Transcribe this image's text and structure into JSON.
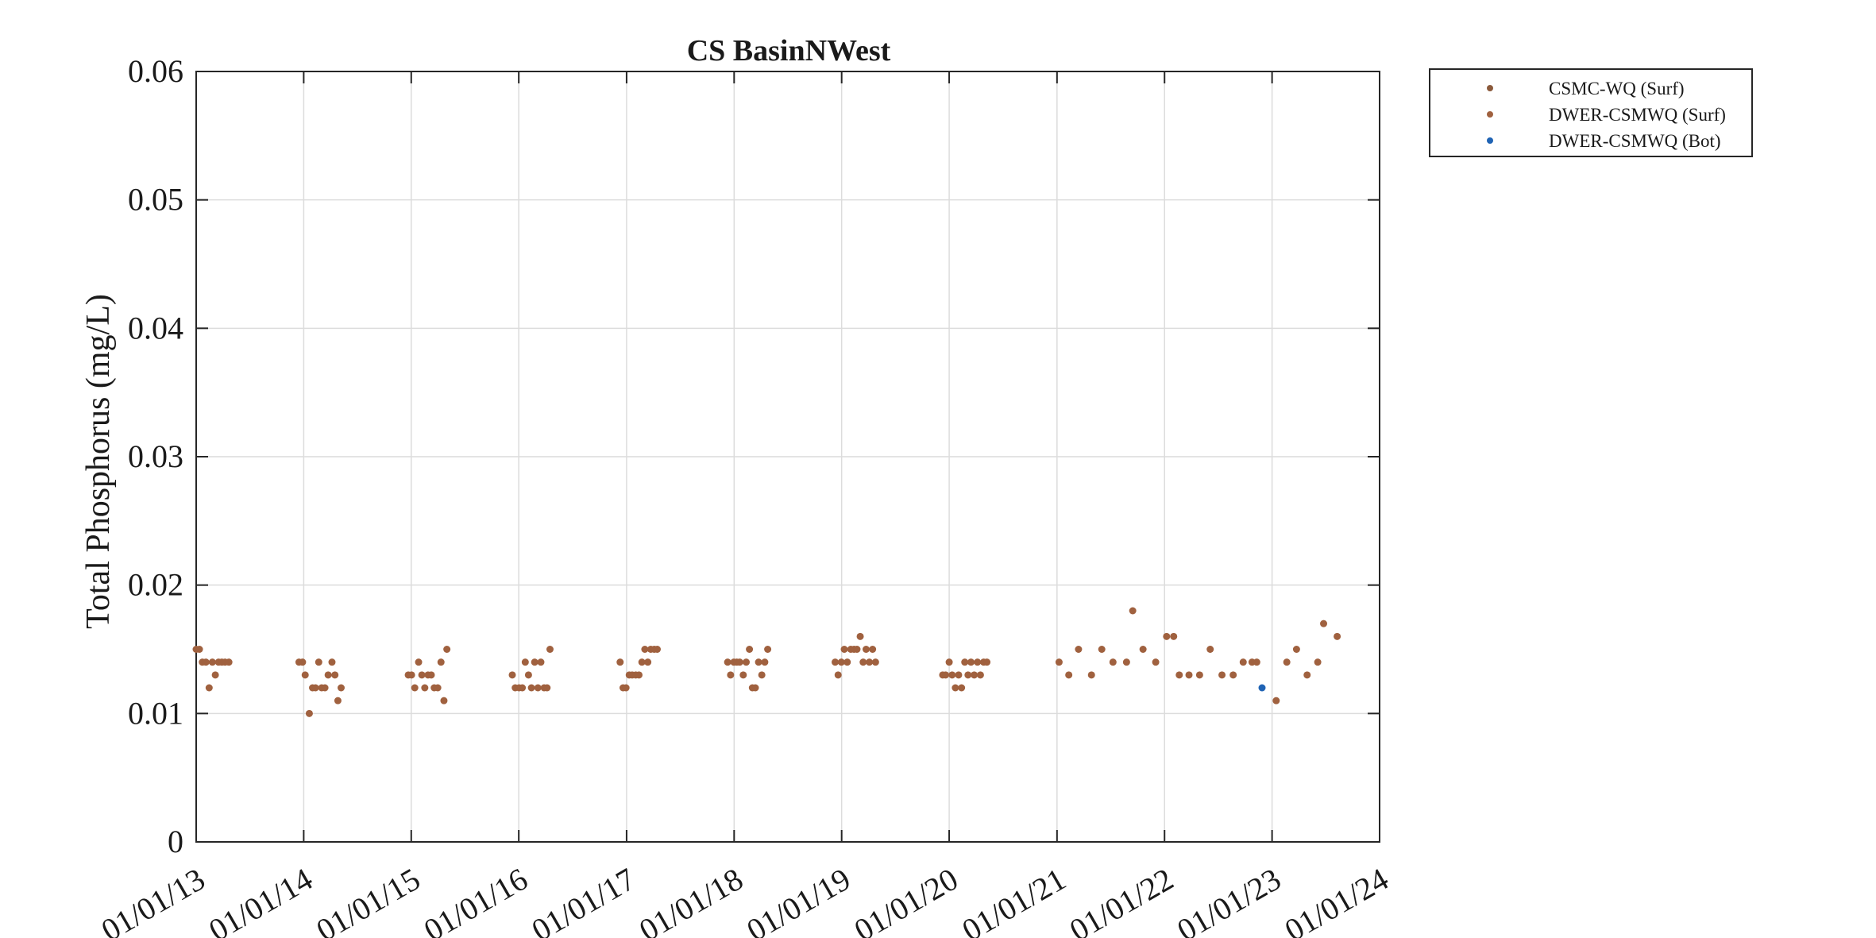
{
  "chart_data": {
    "type": "scatter",
    "title": "CS BasinNWest",
    "xlabel": "",
    "ylabel": "Total Phosphorus (mg/L)",
    "xlim": [
      "2013-01-01",
      "2024-01-01"
    ],
    "ylim": [
      0,
      0.06
    ],
    "grid": true,
    "legend_position": "outside-top-right",
    "x_ticks": [
      "01/01/13",
      "01/01/14",
      "01/01/15",
      "01/01/16",
      "01/01/17",
      "01/01/18",
      "01/01/19",
      "01/01/20",
      "01/01/21",
      "01/01/22",
      "01/01/23",
      "01/01/24"
    ],
    "y_ticks": [
      "0",
      "0.01",
      "0.02",
      "0.03",
      "0.04",
      "0.05",
      "0.06"
    ],
    "y_tick_values": [
      0,
      0.01,
      0.02,
      0.03,
      0.04,
      0.05,
      0.06
    ],
    "series": [
      {
        "name": "CSMC-WQ (Surf)",
        "color": "#8B5A3C",
        "points": []
      },
      {
        "name": "DWER-CSMWQ (Surf)",
        "color": "#A0613F",
        "points": [
          [
            "2013-01-01",
            0.015
          ],
          [
            "2013-01-12",
            0.015
          ],
          [
            "2013-01-22",
            0.014
          ],
          [
            "2013-02-03",
            0.014
          ],
          [
            "2013-02-14",
            0.012
          ],
          [
            "2013-02-25",
            0.014
          ],
          [
            "2013-03-07",
            0.013
          ],
          [
            "2013-03-18",
            0.014
          ],
          [
            "2013-03-29",
            0.014
          ],
          [
            "2013-04-09",
            0.014
          ],
          [
            "2013-04-22",
            0.014
          ],
          [
            "2013-12-16",
            0.014
          ],
          [
            "2013-12-28",
            0.014
          ],
          [
            "2014-01-06",
            0.013
          ],
          [
            "2014-01-20",
            0.01
          ],
          [
            "2014-01-31",
            0.012
          ],
          [
            "2014-02-10",
            0.012
          ],
          [
            "2014-02-21",
            0.014
          ],
          [
            "2014-03-03",
            0.012
          ],
          [
            "2014-03-14",
            0.012
          ],
          [
            "2014-03-25",
            0.013
          ],
          [
            "2014-04-07",
            0.014
          ],
          [
            "2014-04-17",
            0.013
          ],
          [
            "2014-04-27",
            0.011
          ],
          [
            "2014-05-08",
            0.012
          ],
          [
            "2014-12-22",
            0.013
          ],
          [
            "2015-01-02",
            0.013
          ],
          [
            "2015-01-13",
            0.012
          ],
          [
            "2015-01-26",
            0.014
          ],
          [
            "2015-02-06",
            0.013
          ],
          [
            "2015-02-16",
            0.012
          ],
          [
            "2015-02-27",
            0.013
          ],
          [
            "2015-03-10",
            0.013
          ],
          [
            "2015-03-20",
            0.012
          ],
          [
            "2015-04-01",
            0.012
          ],
          [
            "2015-04-12",
            0.014
          ],
          [
            "2015-04-22",
            0.011
          ],
          [
            "2015-05-02",
            0.015
          ],
          [
            "2015-12-10",
            0.013
          ],
          [
            "2015-12-20",
            0.012
          ],
          [
            "2016-01-02",
            0.012
          ],
          [
            "2016-01-13",
            0.012
          ],
          [
            "2016-01-23",
            0.014
          ],
          [
            "2016-02-03",
            0.013
          ],
          [
            "2016-02-13",
            0.012
          ],
          [
            "2016-02-24",
            0.014
          ],
          [
            "2016-03-06",
            0.012
          ],
          [
            "2016-03-16",
            0.014
          ],
          [
            "2016-03-27",
            0.012
          ],
          [
            "2016-04-06",
            0.012
          ],
          [
            "2016-04-16",
            0.015
          ],
          [
            "2016-12-10",
            0.014
          ],
          [
            "2016-12-20",
            0.012
          ],
          [
            "2016-12-30",
            0.012
          ],
          [
            "2017-01-10",
            0.013
          ],
          [
            "2017-01-20",
            0.013
          ],
          [
            "2017-02-01",
            0.013
          ],
          [
            "2017-02-12",
            0.013
          ],
          [
            "2017-02-22",
            0.014
          ],
          [
            "2017-03-04",
            0.015
          ],
          [
            "2017-03-14",
            0.014
          ],
          [
            "2017-03-24",
            0.015
          ],
          [
            "2017-04-05",
            0.015
          ],
          [
            "2017-04-15",
            0.015
          ],
          [
            "2017-12-10",
            0.014
          ],
          [
            "2017-12-20",
            0.013
          ],
          [
            "2017-12-31",
            0.014
          ],
          [
            "2018-01-10",
            0.014
          ],
          [
            "2018-01-20",
            0.014
          ],
          [
            "2018-02-01",
            0.013
          ],
          [
            "2018-02-11",
            0.014
          ],
          [
            "2018-02-22",
            0.015
          ],
          [
            "2018-03-04",
            0.012
          ],
          [
            "2018-03-14",
            0.012
          ],
          [
            "2018-03-25",
            0.014
          ],
          [
            "2018-04-05",
            0.013
          ],
          [
            "2018-04-15",
            0.014
          ],
          [
            "2018-04-25",
            0.015
          ],
          [
            "2018-12-10",
            0.014
          ],
          [
            "2018-12-20",
            0.013
          ],
          [
            "2018-12-31",
            0.014
          ],
          [
            "2019-01-10",
            0.015
          ],
          [
            "2019-01-20",
            0.014
          ],
          [
            "2019-02-01",
            0.015
          ],
          [
            "2019-02-12",
            0.015
          ],
          [
            "2019-02-22",
            0.015
          ],
          [
            "2019-03-05",
            0.016
          ],
          [
            "2019-03-15",
            0.014
          ],
          [
            "2019-03-25",
            0.015
          ],
          [
            "2019-04-05",
            0.014
          ],
          [
            "2019-04-16",
            0.015
          ],
          [
            "2019-04-26",
            0.014
          ],
          [
            "2019-12-10",
            0.013
          ],
          [
            "2019-12-20",
            0.013
          ],
          [
            "2020-01-01",
            0.014
          ],
          [
            "2020-01-11",
            0.013
          ],
          [
            "2020-01-22",
            0.012
          ],
          [
            "2020-02-02",
            0.013
          ],
          [
            "2020-02-12",
            0.012
          ],
          [
            "2020-02-23",
            0.014
          ],
          [
            "2020-03-05",
            0.013
          ],
          [
            "2020-03-15",
            0.014
          ],
          [
            "2020-03-26",
            0.013
          ],
          [
            "2020-04-06",
            0.014
          ],
          [
            "2020-04-16",
            0.013
          ],
          [
            "2020-04-27",
            0.014
          ],
          [
            "2020-05-08",
            0.014
          ],
          [
            "2021-01-08",
            0.014
          ],
          [
            "2021-02-10",
            0.013
          ],
          [
            "2021-03-15",
            0.015
          ],
          [
            "2021-04-28",
            0.013
          ],
          [
            "2021-06-02",
            0.015
          ],
          [
            "2021-07-10",
            0.014
          ],
          [
            "2021-08-25",
            0.014
          ],
          [
            "2021-09-15",
            0.018
          ],
          [
            "2021-10-20",
            0.015
          ],
          [
            "2021-12-02",
            0.014
          ],
          [
            "2022-01-08",
            0.016
          ],
          [
            "2022-02-01",
            0.016
          ],
          [
            "2022-02-20",
            0.013
          ],
          [
            "2022-03-25",
            0.013
          ],
          [
            "2022-04-30",
            0.013
          ],
          [
            "2022-06-05",
            0.015
          ],
          [
            "2022-07-15",
            0.013
          ],
          [
            "2022-08-22",
            0.013
          ],
          [
            "2022-09-25",
            0.014
          ],
          [
            "2022-10-25",
            0.014
          ],
          [
            "2022-11-10",
            0.014
          ],
          [
            "2023-01-15",
            0.011
          ],
          [
            "2023-02-20",
            0.014
          ],
          [
            "2023-03-25",
            0.015
          ],
          [
            "2023-04-30",
            0.013
          ],
          [
            "2023-06-05",
            0.014
          ],
          [
            "2023-06-25",
            0.017
          ],
          [
            "2023-08-10",
            0.016
          ]
        ]
      },
      {
        "name": "DWER-CSMWQ (Bot)",
        "color": "#1f63b4",
        "points": [
          [
            "2022-11-28",
            0.012
          ]
        ]
      }
    ]
  }
}
